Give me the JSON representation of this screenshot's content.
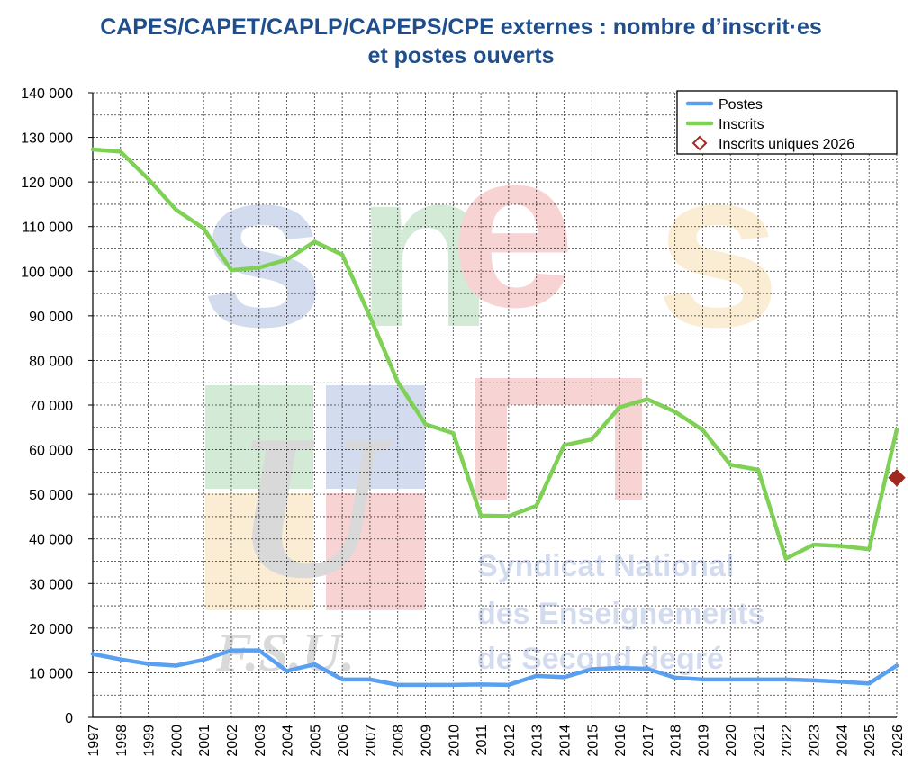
{
  "chart_data": {
    "type": "line",
    "title_line1": "CAPES/CAPET/CAPLP/CAPEPS/CPE externes : nombre d’inscrit·es",
    "title_line2": "et postes ouverts",
    "xlabel": "",
    "ylabel": "",
    "ylim": [
      0,
      140000
    ],
    "y_ticks": [
      "0",
      "10 000",
      "20 000",
      "30 000",
      "40 000",
      "50 000",
      "60 000",
      "70 000",
      "80 000",
      "90 000",
      "100 000",
      "110 000",
      "120 000",
      "130 000",
      "140 000"
    ],
    "x": [
      "1997",
      "1998",
      "1999",
      "2000",
      "2001",
      "2002",
      "2003",
      "2004",
      "2005",
      "2006",
      "2007",
      "2008",
      "2009",
      "2010",
      "2011",
      "2012",
      "2013",
      "2014",
      "2015",
      "2016",
      "2017",
      "2018",
      "2019",
      "2020",
      "2021",
      "2022",
      "2023",
      "2024",
      "2025",
      "2026"
    ],
    "grid": true,
    "legend_position": "top-right",
    "series": [
      {
        "name": "Postes",
        "color": "#5aa0f0",
        "values": [
          14200,
          13000,
          12000,
          11600,
          12900,
          15000,
          15000,
          10400,
          11900,
          8500,
          8500,
          7300,
          7300,
          7300,
          7400,
          7300,
          9300,
          9000,
          10800,
          11100,
          10900,
          8900,
          8500,
          8500,
          8500,
          8500,
          8300,
          8000,
          7600,
          11600
        ]
      },
      {
        "name": "Inscrits",
        "color": "#7fd155",
        "values": [
          127300,
          126800,
          120700,
          113800,
          109600,
          100200,
          100800,
          102600,
          106600,
          103700,
          89800,
          75200,
          65700,
          63700,
          45200,
          45100,
          47400,
          61000,
          62300,
          69500,
          71300,
          68500,
          64400,
          56600,
          55500,
          35600,
          38700,
          38400,
          37700,
          64500
        ]
      },
      {
        "name": "Inscrits uniques 2026",
        "color": "#a0281e",
        "marker": "diamond",
        "points": [
          {
            "x": "2026",
            "y": 53700
          }
        ]
      }
    ]
  },
  "watermark": {
    "logo_text": "snes",
    "fsu_text": "F.S.U.",
    "u_text": "U",
    "lines": [
      "Syndicat National",
      "des Enseignements",
      "de Second degré"
    ]
  }
}
